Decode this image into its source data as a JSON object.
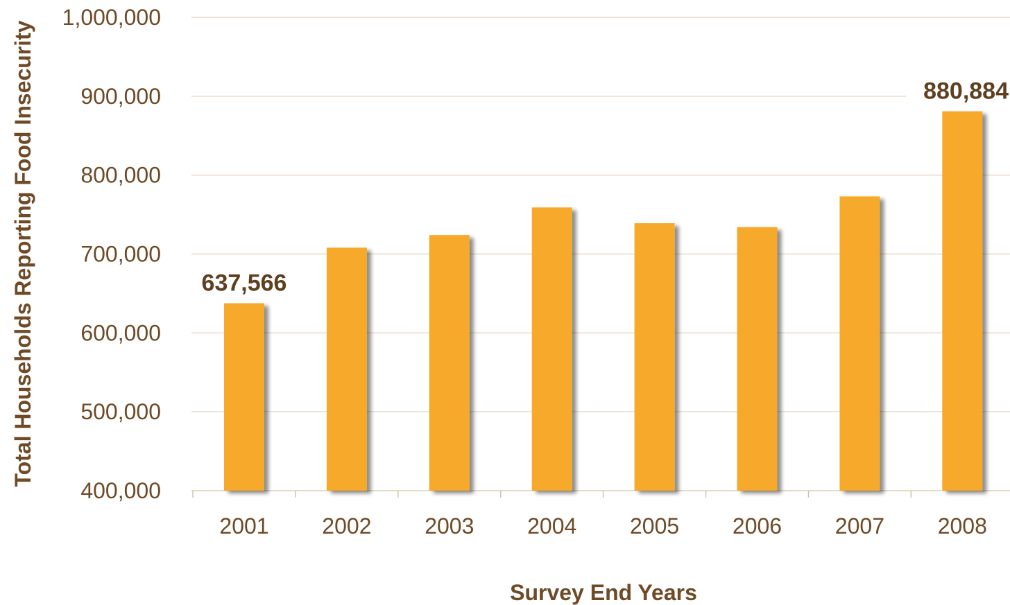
{
  "chart_data": {
    "type": "bar",
    "title": "",
    "xlabel": "Survey End Years",
    "ylabel": "Total Households Reporting Food Insecurity",
    "categories": [
      "2001",
      "2002",
      "2003",
      "2004",
      "2005",
      "2006",
      "2007",
      "2008"
    ],
    "values": [
      637566,
      708000,
      724000,
      759000,
      739000,
      734000,
      773000,
      880884
    ],
    "data_labels": [
      {
        "category": "2001",
        "text": "637,566"
      },
      {
        "category": "2008",
        "text": "880,884"
      }
    ],
    "ylim": [
      400000,
      1000000
    ],
    "yticks": [
      400000,
      500000,
      600000,
      700000,
      800000,
      900000,
      1000000
    ],
    "ytick_labels": [
      "400,000",
      "500,000",
      "600,000",
      "700,000",
      "800,000",
      "900,000",
      "1,000,000"
    ],
    "grid": true,
    "legend": "none",
    "colors": {
      "bar": "#f6a929",
      "bar_shadow": "#b09a7a",
      "gridline": "#e6dcc3",
      "text": "#6e4a26"
    }
  }
}
